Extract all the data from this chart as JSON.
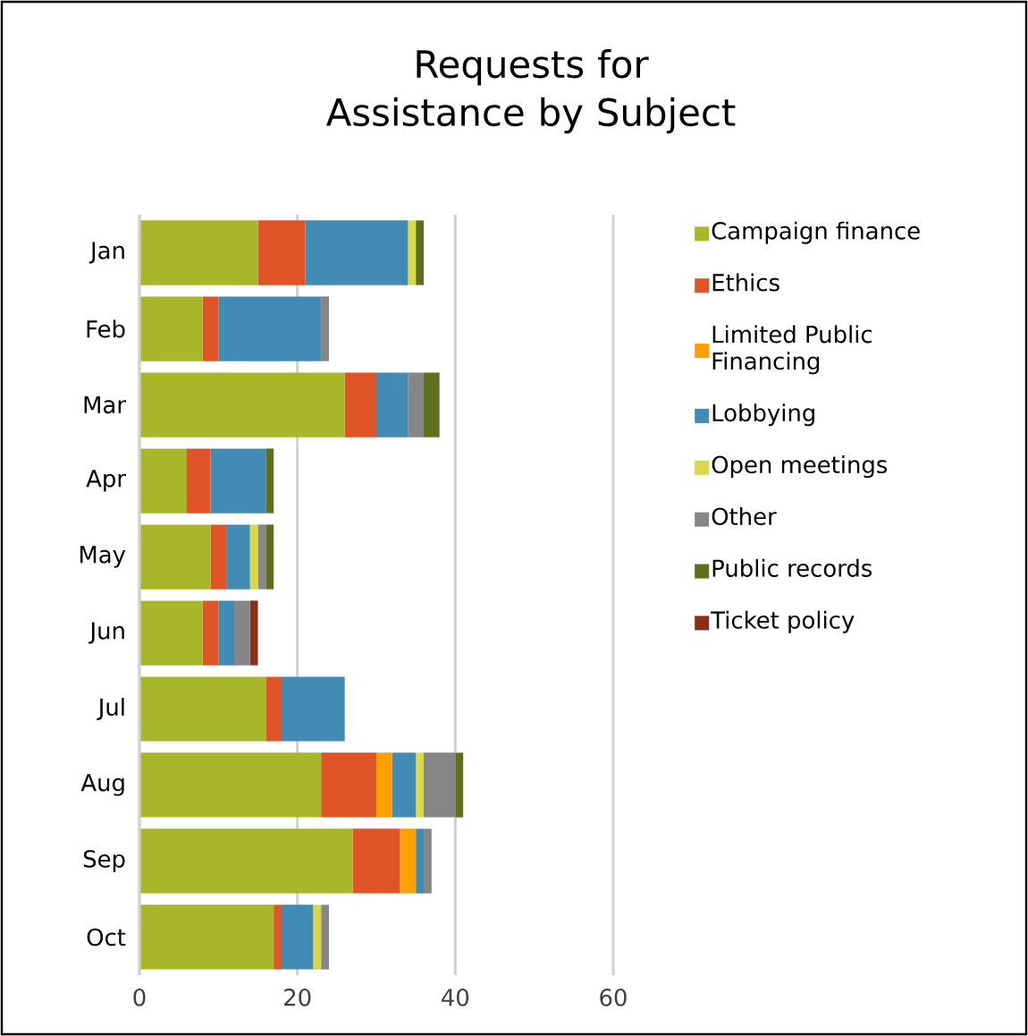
{
  "chart_data": {
    "type": "bar",
    "orientation": "horizontal",
    "stacked": true,
    "title": "Requests for Assistance by Subject",
    "categories": [
      "Jan",
      "Feb",
      "Mar",
      "Apr",
      "May",
      "Jun",
      "Jul",
      "Aug",
      "Sep",
      "Oct"
    ],
    "series": [
      {
        "name": "Campaign finance",
        "color": "#a8b72a",
        "values": [
          15,
          8,
          26,
          6,
          9,
          8,
          16,
          23,
          27,
          17
        ]
      },
      {
        "name": "Ethics",
        "color": "#e05527",
        "values": [
          6,
          2,
          4,
          3,
          2,
          2,
          2,
          7,
          6,
          1
        ]
      },
      {
        "name": "Limited Public Financing",
        "color": "#ffa000",
        "values": [
          0,
          0,
          0,
          0,
          0,
          0,
          0,
          2,
          2,
          0
        ]
      },
      {
        "name": "Lobbying",
        "color": "#428bb5",
        "values": [
          13,
          13,
          4,
          7,
          3,
          2,
          8,
          3,
          1,
          4
        ]
      },
      {
        "name": "Open meetings",
        "color": "#d8d848",
        "values": [
          1,
          0,
          0,
          0,
          1,
          0,
          0,
          1,
          0,
          1
        ]
      },
      {
        "name": "Other",
        "color": "#868686",
        "values": [
          0,
          1,
          2,
          0,
          1,
          2,
          0,
          4,
          1,
          1
        ]
      },
      {
        "name": "Public records",
        "color": "#5f6f1e",
        "values": [
          1,
          0,
          2,
          1,
          1,
          0,
          0,
          1,
          0,
          0
        ]
      },
      {
        "name": "Ticket policy",
        "color": "#8b2f1a",
        "values": [
          0,
          0,
          0,
          0,
          0,
          1,
          0,
          0,
          0,
          0
        ]
      }
    ],
    "xlim": [
      0,
      60
    ],
    "xticks": [
      0,
      20,
      40,
      60
    ],
    "grid": "x",
    "legend": "right"
  }
}
